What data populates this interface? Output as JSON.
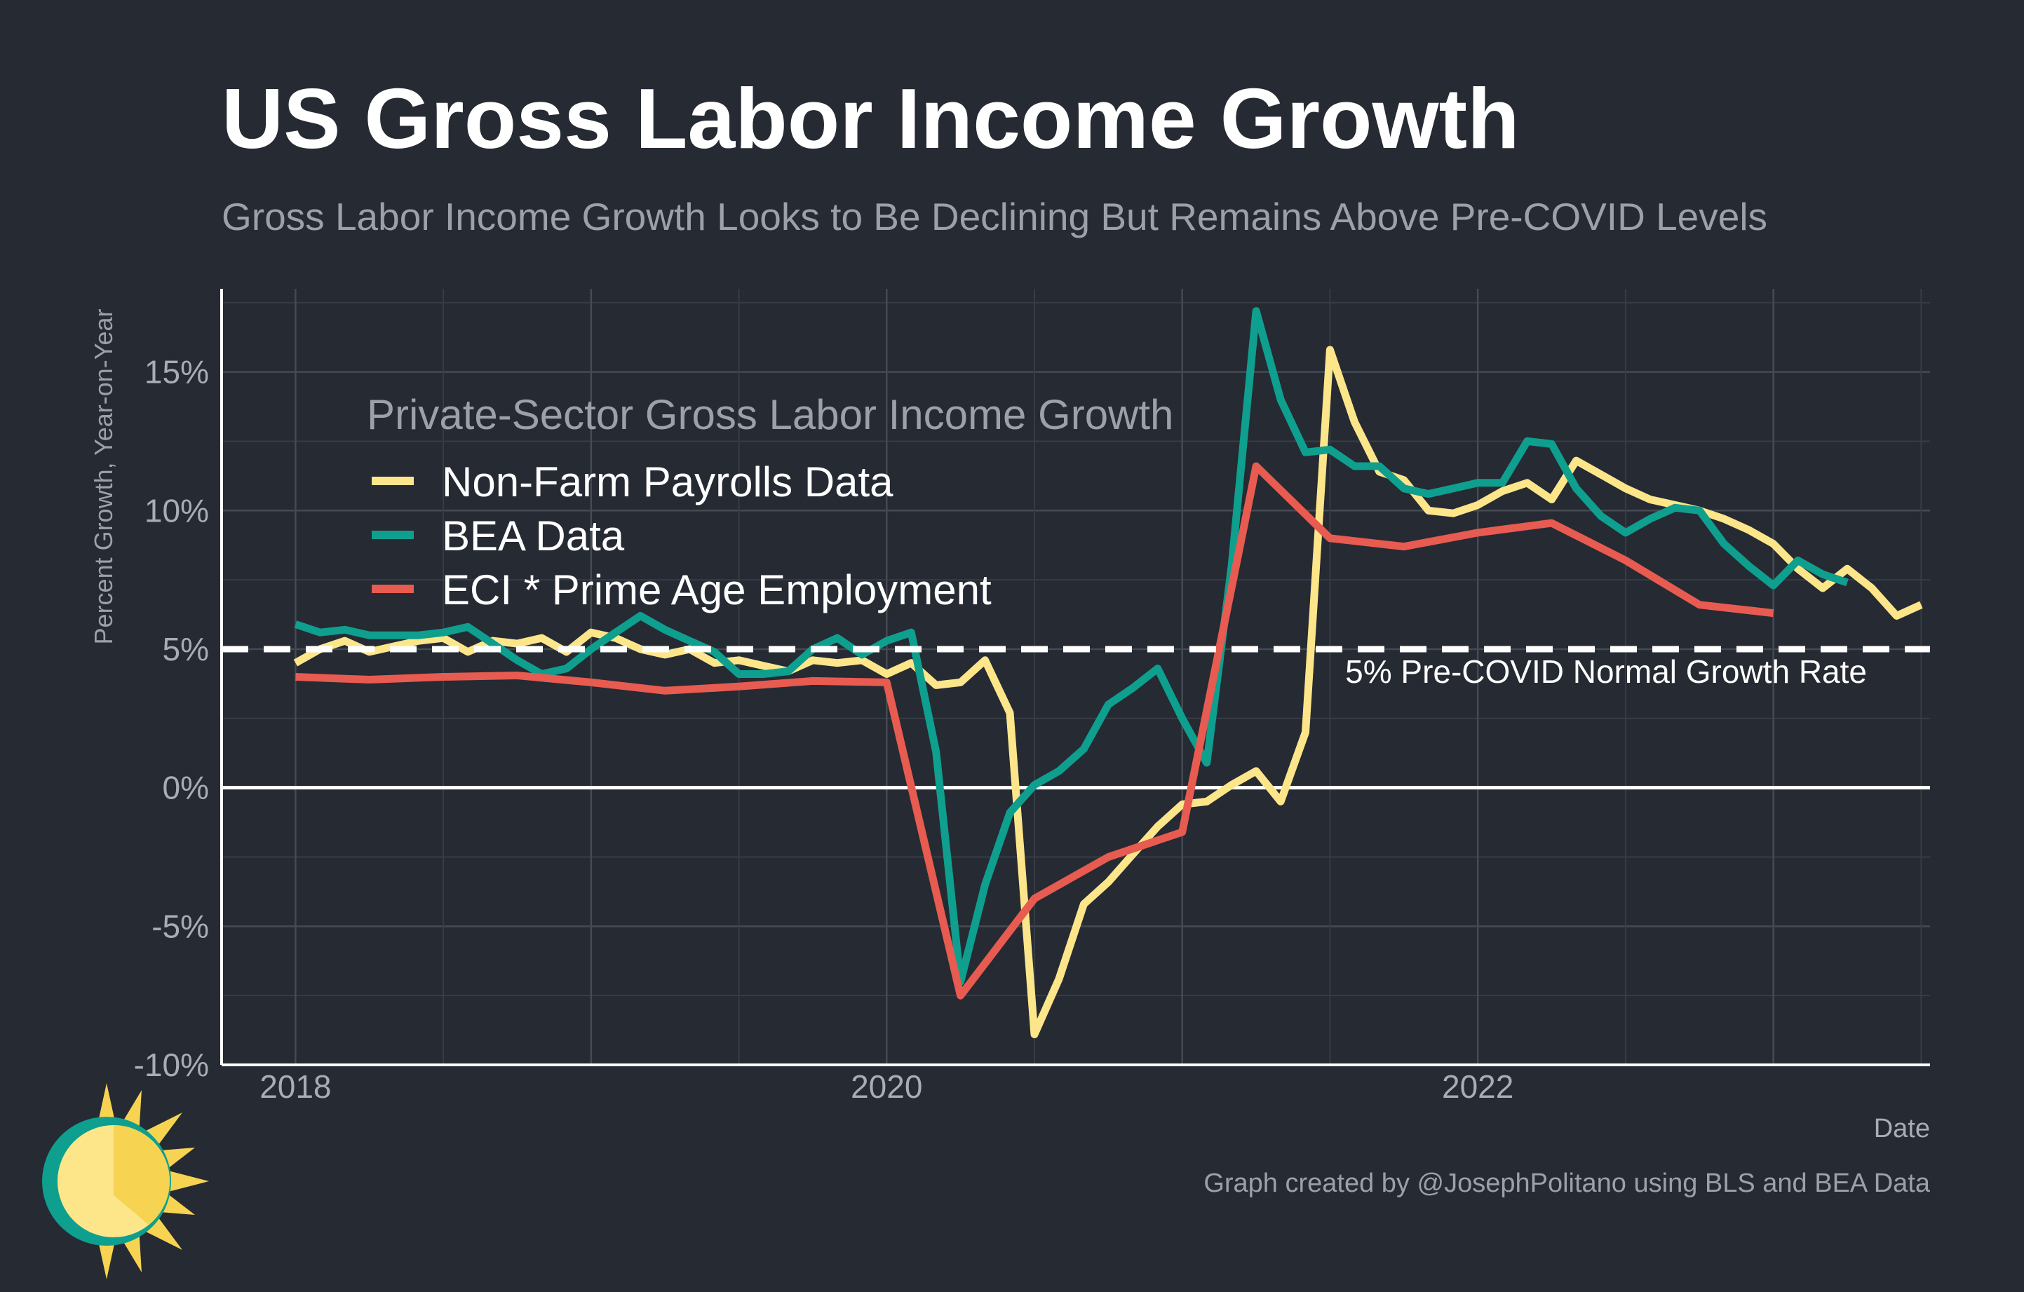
{
  "chart_data": {
    "type": "line",
    "title": "US Gross Labor Income Growth",
    "subtitle": "Gross Labor Income Growth Looks to Be Declining But Remains Above Pre-COVID Levels",
    "xlabel": "Date",
    "ylabel": "Percent Growth, Year-on-Year",
    "xlim": [
      2017.75,
      2023.53
    ],
    "ylim": [
      -10,
      18
    ],
    "x_ticks": [
      {
        "value": 2018,
        "label": "2018"
      },
      {
        "value": 2020,
        "label": "2020"
      },
      {
        "value": 2022,
        "label": "2022"
      }
    ],
    "y_ticks": [
      {
        "value": 15,
        "label": "15%"
      },
      {
        "value": 10,
        "label": "10%"
      },
      {
        "value": 5,
        "label": "5%"
      },
      {
        "value": 0,
        "label": "0%"
      },
      {
        "value": -5,
        "label": "-5%"
      },
      {
        "value": -10,
        "label": "-10%"
      }
    ],
    "legend_title": "Private-Sector Gross Labor Income Growth",
    "legend_position": "top-left",
    "reference_line": {
      "value": 5,
      "label": "5% Pre-COVID Normal Growth Rate",
      "style": "dashed"
    },
    "caption": "Graph created by @JosephPolitano using BLS and BEA Data",
    "series": [
      {
        "name": "Non-Farm Payrolls Data",
        "color": "#fde68a",
        "points": [
          [
            2018.0,
            4.5
          ],
          [
            2018.083,
            5.0
          ],
          [
            2018.167,
            5.3
          ],
          [
            2018.25,
            4.9
          ],
          [
            2018.333,
            5.1
          ],
          [
            2018.417,
            5.3
          ],
          [
            2018.5,
            5.4
          ],
          [
            2018.583,
            4.9
          ],
          [
            2018.667,
            5.3
          ],
          [
            2018.75,
            5.2
          ],
          [
            2018.833,
            5.4
          ],
          [
            2018.917,
            4.9
          ],
          [
            2019.0,
            5.6
          ],
          [
            2019.083,
            5.4
          ],
          [
            2019.167,
            5.0
          ],
          [
            2019.25,
            4.8
          ],
          [
            2019.333,
            5.0
          ],
          [
            2019.417,
            4.5
          ],
          [
            2019.5,
            4.6
          ],
          [
            2019.583,
            4.4
          ],
          [
            2019.667,
            4.2
          ],
          [
            2019.75,
            4.6
          ],
          [
            2019.833,
            4.5
          ],
          [
            2019.917,
            4.6
          ],
          [
            2020.0,
            4.1
          ],
          [
            2020.083,
            4.5
          ],
          [
            2020.167,
            3.7
          ],
          [
            2020.25,
            3.8
          ],
          [
            2020.333,
            4.6
          ],
          [
            2020.417,
            2.7
          ],
          [
            2020.5,
            -8.9
          ],
          [
            2020.583,
            -6.9
          ],
          [
            2020.667,
            -4.2
          ],
          [
            2020.75,
            -3.4
          ],
          [
            2020.833,
            -2.4
          ],
          [
            2020.917,
            -1.4
          ],
          [
            2021.0,
            -0.6
          ],
          [
            2021.083,
            -0.5
          ],
          [
            2021.167,
            0.1
          ],
          [
            2021.25,
            0.6
          ],
          [
            2021.333,
            -0.5
          ],
          [
            2021.417,
            2.0
          ],
          [
            2021.5,
            15.8
          ],
          [
            2021.583,
            13.2
          ],
          [
            2021.667,
            11.4
          ],
          [
            2021.75,
            11.1
          ],
          [
            2021.833,
            10.0
          ],
          [
            2021.917,
            9.9
          ],
          [
            2022.0,
            10.2
          ],
          [
            2022.083,
            10.7
          ],
          [
            2022.167,
            11.0
          ],
          [
            2022.25,
            10.4
          ],
          [
            2022.333,
            11.8
          ],
          [
            2022.417,
            11.3
          ],
          [
            2022.5,
            10.8
          ],
          [
            2022.583,
            10.4
          ],
          [
            2022.667,
            10.2
          ],
          [
            2022.75,
            10.0
          ],
          [
            2022.833,
            9.7
          ],
          [
            2022.917,
            9.3
          ],
          [
            2023.0,
            8.8
          ],
          [
            2023.083,
            7.9
          ],
          [
            2023.167,
            7.2
          ],
          [
            2023.25,
            7.9
          ],
          [
            2023.333,
            7.2
          ],
          [
            2023.417,
            6.2
          ],
          [
            2023.5,
            6.6
          ]
        ]
      },
      {
        "name": "BEA Data",
        "color": "#0e9f8e",
        "points": [
          [
            2018.0,
            5.9
          ],
          [
            2018.083,
            5.6
          ],
          [
            2018.167,
            5.7
          ],
          [
            2018.25,
            5.5
          ],
          [
            2018.333,
            5.5
          ],
          [
            2018.417,
            5.5
          ],
          [
            2018.5,
            5.6
          ],
          [
            2018.583,
            5.8
          ],
          [
            2018.667,
            5.2
          ],
          [
            2018.75,
            4.6
          ],
          [
            2018.833,
            4.1
          ],
          [
            2018.917,
            4.3
          ],
          [
            2019.0,
            5.0
          ],
          [
            2019.083,
            5.6
          ],
          [
            2019.167,
            6.2
          ],
          [
            2019.25,
            5.7
          ],
          [
            2019.333,
            5.3
          ],
          [
            2019.417,
            4.9
          ],
          [
            2019.5,
            4.1
          ],
          [
            2019.583,
            4.1
          ],
          [
            2019.667,
            4.2
          ],
          [
            2019.75,
            5.0
          ],
          [
            2019.833,
            5.4
          ],
          [
            2019.917,
            4.8
          ],
          [
            2020.0,
            5.3
          ],
          [
            2020.083,
            5.6
          ],
          [
            2020.167,
            1.3
          ],
          [
            2020.25,
            -7.0
          ],
          [
            2020.333,
            -3.5
          ],
          [
            2020.417,
            -0.9
          ],
          [
            2020.5,
            0.1
          ],
          [
            2020.583,
            0.6
          ],
          [
            2020.667,
            1.4
          ],
          [
            2020.75,
            3.0
          ],
          [
            2020.833,
            3.6
          ],
          [
            2020.917,
            4.3
          ],
          [
            2021.0,
            2.5
          ],
          [
            2021.083,
            0.9
          ],
          [
            2021.167,
            8.0
          ],
          [
            2021.25,
            17.2
          ],
          [
            2021.333,
            14.0
          ],
          [
            2021.417,
            12.1
          ],
          [
            2021.5,
            12.2
          ],
          [
            2021.583,
            11.6
          ],
          [
            2021.667,
            11.6
          ],
          [
            2021.75,
            10.8
          ],
          [
            2021.833,
            10.6
          ],
          [
            2021.917,
            10.8
          ],
          [
            2022.0,
            11.0
          ],
          [
            2022.083,
            11.0
          ],
          [
            2022.167,
            12.5
          ],
          [
            2022.25,
            12.4
          ],
          [
            2022.333,
            10.8
          ],
          [
            2022.417,
            9.8
          ],
          [
            2022.5,
            9.2
          ],
          [
            2022.583,
            9.7
          ],
          [
            2022.667,
            10.1
          ],
          [
            2022.75,
            10.0
          ],
          [
            2022.833,
            8.8
          ],
          [
            2022.917,
            8.0
          ],
          [
            2023.0,
            7.3
          ],
          [
            2023.083,
            8.2
          ],
          [
            2023.167,
            7.7
          ],
          [
            2023.25,
            7.4
          ]
        ]
      },
      {
        "name": "ECI * Prime Age Employment",
        "color": "#e75b50",
        "points": [
          [
            2018.0,
            4.0
          ],
          [
            2018.25,
            3.9
          ],
          [
            2018.5,
            4.0
          ],
          [
            2018.75,
            4.05
          ],
          [
            2019.0,
            3.8
          ],
          [
            2019.25,
            3.5
          ],
          [
            2019.5,
            3.65
          ],
          [
            2019.75,
            3.85
          ],
          [
            2020.0,
            3.8
          ],
          [
            2020.25,
            -7.5
          ],
          [
            2020.5,
            -4.0
          ],
          [
            2020.75,
            -2.5
          ],
          [
            2021.0,
            -1.6
          ],
          [
            2021.25,
            11.6
          ],
          [
            2021.5,
            9.0
          ],
          [
            2021.75,
            8.7
          ],
          [
            2022.0,
            9.2
          ],
          [
            2022.25,
            9.55
          ],
          [
            2022.5,
            8.2
          ],
          [
            2022.75,
            6.6
          ],
          [
            2023.0,
            6.3
          ]
        ]
      }
    ]
  }
}
